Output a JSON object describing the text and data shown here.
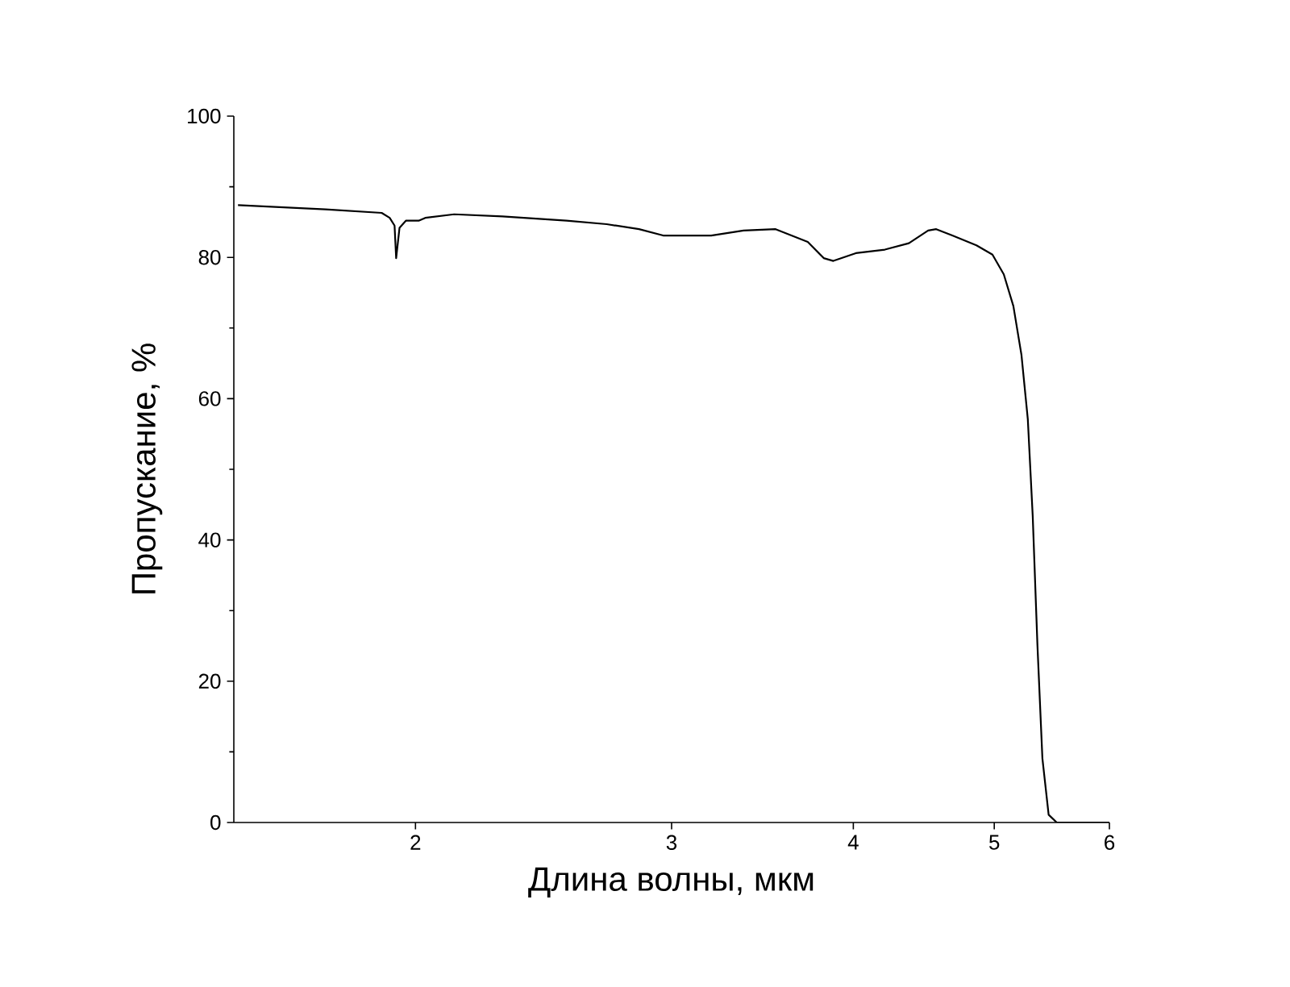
{
  "chart_data": {
    "type": "line",
    "xlabel": "Длина волны, мкм",
    "ylabel": "Пропускание, %",
    "log": "x",
    "xlim": [
      1.5,
      6
    ],
    "xticks": [
      2,
      3,
      4,
      5,
      6
    ],
    "ylim": [
      0,
      100
    ],
    "yticks": [
      0,
      20,
      40,
      60,
      80,
      100
    ],
    "marker": "none",
    "line_style": "solid",
    "series": [
      {
        "color": "#000000",
        "x": [
          1.51,
          1.734,
          1.896,
          1.92,
          1.935,
          1.94,
          1.95,
          1.97,
          2.01,
          2.031,
          2.126,
          2.295,
          2.54,
          2.707,
          2.849,
          2.96,
          3.194,
          3.362,
          3.537,
          3.722,
          3.817,
          3.876,
          4.016,
          4.205,
          4.368,
          4.503,
          4.561,
          4.679,
          4.861,
          4.986,
          5.076,
          5.154,
          5.22,
          5.273,
          5.314,
          5.354,
          5.396,
          5.45,
          5.52,
          6.0
        ],
        "values": [
          87.4,
          86.8,
          86.3,
          85.6,
          84.5,
          79.9,
          84.2,
          85.2,
          85.2,
          85.6,
          86.1,
          85.8,
          85.2,
          84.7,
          84.0,
          83.1,
          83.1,
          83.8,
          84.0,
          82.2,
          79.9,
          79.5,
          80.6,
          81.1,
          82.0,
          83.8,
          84.0,
          83.1,
          81.7,
          80.4,
          77.6,
          73.1,
          66.2,
          57.1,
          43.4,
          25.1,
          9.1,
          1.1,
          0,
          0
        ]
      }
    ]
  }
}
